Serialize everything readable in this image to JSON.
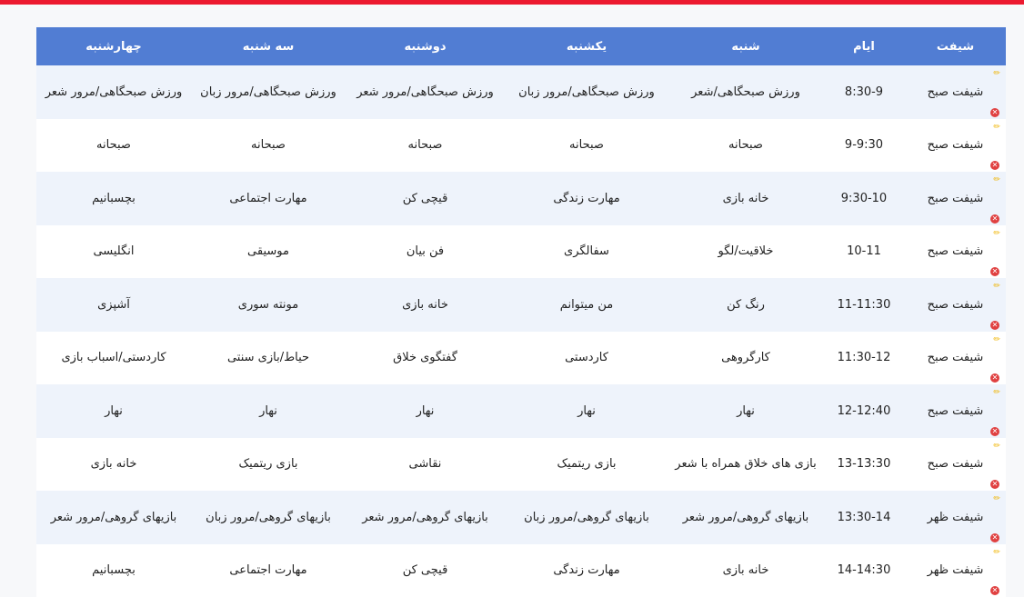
{
  "headers": [
    "شیفت",
    "ایام",
    "شنبه",
    "یکشنبه",
    "دوشنبه",
    "سه شنبه",
    "چهارشنبه"
  ],
  "rows": [
    [
      "شیفت صبح",
      "8:30-9",
      "ورزش صبحگاهی/شعر",
      "ورزش صبحگاهی/مرور زبان",
      "ورزش صبحگاهی/مرور شعر",
      "ورزش صبحگاهی/مرور زبان",
      "ورزش صبحگاهی/مرور شعر"
    ],
    [
      "شیفت صبح",
      "9-9:30",
      "صبحانه",
      "صبحانه",
      "صبحانه",
      "صبحانه",
      "صبحانه"
    ],
    [
      "شیفت صبح",
      "9:30-10",
      "خانه بازی",
      "مهارت زندگی",
      "قیچی کن",
      "مهارت اجتماعی",
      "بچسبانیم"
    ],
    [
      "شیفت صبح",
      "10-11",
      "خلاقیت/لگو",
      "سفالگری",
      "فن بیان",
      "موسیقی",
      "انگلیسی"
    ],
    [
      "شیفت صبح",
      "11-11:30",
      "رنگ کن",
      "من میتوانم",
      "خانه بازی",
      "مونته سوری",
      "آشپزی"
    ],
    [
      "شیفت صبح",
      "11:30-12",
      "کارگروهی",
      "کاردستی",
      "گفتگوی خلاق",
      "حیاط/بازی سنتی",
      "کاردستی/اسباب بازی"
    ],
    [
      "شیفت صبح",
      "12-12:40",
      "نهار",
      "نهار",
      "نهار",
      "نهار",
      "نهار"
    ],
    [
      "شیفت صبح",
      "13-13:30",
      "بازی های خلاق همراه با شعر",
      "بازی ریتمیک",
      "نقاشی",
      "بازی ریتمیک",
      "خانه بازی"
    ],
    [
      "شیفت ظهر",
      "13:30-14",
      "بازیهای گروهی/مرور شعر",
      "بازیهای گروهی/مرور زبان",
      "بازیهای گروهی/مرور شعر",
      "بازیهای گروهی/مرور زبان",
      "بازیهای گروهی/مرور شعر"
    ],
    [
      "شیفت ظهر",
      "14-14:30",
      "خانه بازی",
      "مهارت زندگی",
      "قیچی کن",
      "مهارت اجتماعی",
      "بچسبانیم"
    ]
  ],
  "icons": {
    "edit": "pencil-icon",
    "delete": "close-circle-icon"
  },
  "colors": {
    "header": "#517dd3",
    "accent": "#ec1a30",
    "stripe": "#eef3fb"
  }
}
